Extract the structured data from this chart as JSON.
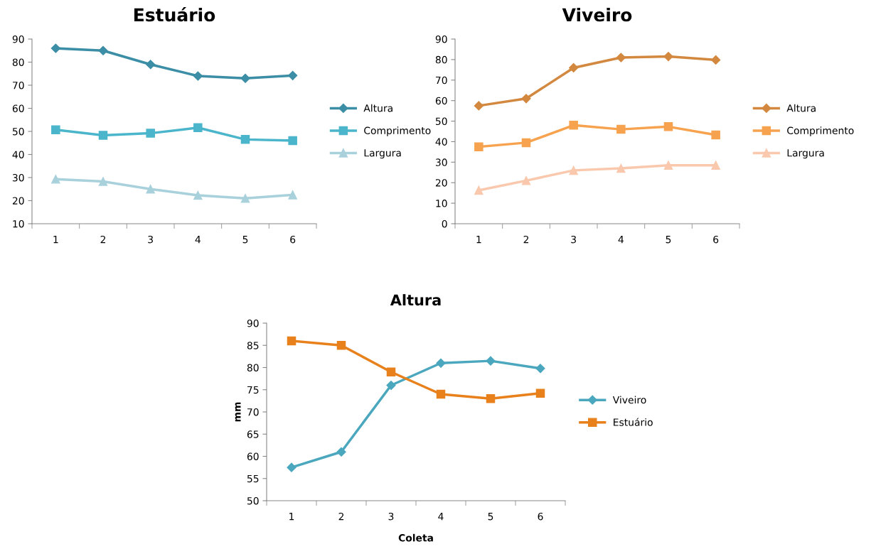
{
  "chart_data": [
    {
      "type": "line",
      "title": "Estuário",
      "categories": [
        "1",
        "2",
        "3",
        "4",
        "5",
        "6"
      ],
      "ylim": [
        10,
        90
      ],
      "yticks": [
        10,
        20,
        30,
        40,
        50,
        60,
        70,
        80,
        90
      ],
      "grid": false,
      "legend": "right",
      "series": [
        {
          "name": "Altura",
          "color": "#3b8ea5",
          "marker": "diamond",
          "values": [
            86,
            85,
            79,
            74,
            73,
            74.2
          ]
        },
        {
          "name": "Comprimento",
          "color": "#4ab5cb",
          "marker": "square",
          "values": [
            50.7,
            48.3,
            49.2,
            51.6,
            46.5,
            46
          ]
        },
        {
          "name": "Largura",
          "color": "#a9d1dc",
          "marker": "triangle",
          "values": [
            29.3,
            28.3,
            25,
            22.3,
            21,
            22.5
          ]
        }
      ]
    },
    {
      "type": "line",
      "title": "Viveiro",
      "categories": [
        "1",
        "2",
        "3",
        "4",
        "5",
        "6"
      ],
      "ylim": [
        0,
        90
      ],
      "yticks": [
        0,
        10,
        20,
        30,
        40,
        50,
        60,
        70,
        80,
        90
      ],
      "grid": false,
      "legend": "right",
      "series": [
        {
          "name": "Altura",
          "color": "#d3883f",
          "marker": "diamond",
          "values": [
            57.5,
            61,
            76,
            81,
            81.5,
            79.8
          ]
        },
        {
          "name": "Comprimento",
          "color": "#f7a24e",
          "marker": "square",
          "values": [
            37.5,
            39.5,
            48,
            46,
            47.3,
            43.3
          ]
        },
        {
          "name": "Largura",
          "color": "#f9c8ad",
          "marker": "triangle",
          "values": [
            16.3,
            21,
            26,
            27,
            28.5,
            28.5
          ]
        }
      ]
    },
    {
      "type": "line",
      "title": "Altura",
      "xlabel": "Coleta",
      "ylabel": "mm",
      "categories": [
        "1",
        "2",
        "3",
        "4",
        "5",
        "6"
      ],
      "ylim": [
        50,
        90
      ],
      "yticks": [
        50,
        55,
        60,
        65,
        70,
        75,
        80,
        85,
        90
      ],
      "grid": false,
      "legend": "right",
      "series": [
        {
          "name": "Viveiro",
          "color": "#4aa7be",
          "marker": "diamond",
          "values": [
            57.5,
            61,
            76,
            81,
            81.5,
            79.8
          ]
        },
        {
          "name": "Estuário",
          "color": "#e8801c",
          "marker": "square",
          "values": [
            86,
            85,
            79,
            74,
            73,
            74.2
          ]
        }
      ]
    }
  ]
}
